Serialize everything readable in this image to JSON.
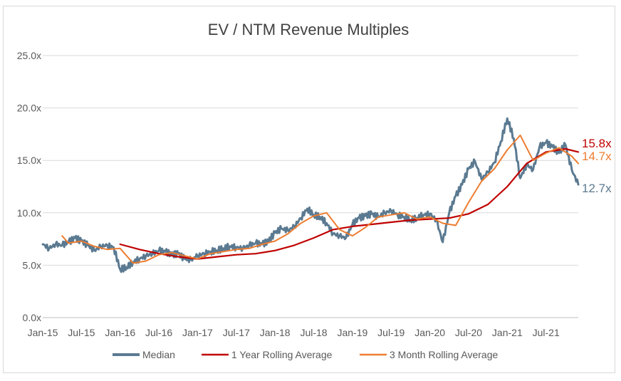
{
  "chart_data": {
    "type": "line",
    "title": "EV / NTM Revenue Multiples",
    "xlabel": "",
    "ylabel": "",
    "ylim": [
      0,
      25
    ],
    "y_ticks": [
      "0.0x",
      "5.0x",
      "10.0x",
      "15.0x",
      "20.0x",
      "25.0x"
    ],
    "y_tick_values": [
      0,
      5,
      10,
      15,
      20,
      25
    ],
    "x_ticks": [
      "Jan-15",
      "Jul-15",
      "Jan-16",
      "Jul-16",
      "Jan-17",
      "Jul-17",
      "Jan-18",
      "Jul-18",
      "Jan-19",
      "Jul-19",
      "Jan-20",
      "Jul-20",
      "Jan-21",
      "Jul-21"
    ],
    "x_range": [
      "2015-01",
      "2021-12"
    ],
    "grid": "horizontal",
    "legend_position": "bottom",
    "series": [
      {
        "name": "Median",
        "color": "#5b7a91",
        "x": [
          "2015-01",
          "2015-02",
          "2015-03",
          "2015-04",
          "2015-05",
          "2015-06",
          "2015-07",
          "2015-08",
          "2015-09",
          "2015-10",
          "2015-11",
          "2015-12",
          "2016-01",
          "2016-02",
          "2016-03",
          "2016-04",
          "2016-05",
          "2016-06",
          "2016-07",
          "2016-08",
          "2016-09",
          "2016-10",
          "2016-11",
          "2016-12",
          "2017-01",
          "2017-02",
          "2017-03",
          "2017-04",
          "2017-05",
          "2017-06",
          "2017-07",
          "2017-08",
          "2017-09",
          "2017-10",
          "2017-11",
          "2017-12",
          "2018-01",
          "2018-02",
          "2018-03",
          "2018-04",
          "2018-05",
          "2018-06",
          "2018-07",
          "2018-08",
          "2018-09",
          "2018-10",
          "2018-11",
          "2018-12",
          "2019-01",
          "2019-02",
          "2019-03",
          "2019-04",
          "2019-05",
          "2019-06",
          "2019-07",
          "2019-08",
          "2019-09",
          "2019-10",
          "2019-11",
          "2019-12",
          "2020-01",
          "2020-02",
          "2020-03",
          "2020-04",
          "2020-05",
          "2020-06",
          "2020-07",
          "2020-08",
          "2020-09",
          "2020-10",
          "2020-11",
          "2020-12",
          "2021-01",
          "2021-02",
          "2021-03",
          "2021-04",
          "2021-05",
          "2021-06",
          "2021-07",
          "2021-08",
          "2021-09",
          "2021-10",
          "2021-11",
          "2021-12"
        ],
        "values": [
          7.0,
          6.6,
          7.0,
          6.9,
          7.2,
          7.6,
          7.3,
          6.9,
          6.4,
          6.8,
          6.9,
          6.7,
          4.6,
          4.8,
          5.3,
          5.6,
          5.9,
          6.1,
          6.4,
          6.3,
          6.0,
          6.1,
          5.6,
          5.5,
          5.9,
          6.1,
          6.3,
          6.4,
          6.6,
          6.8,
          6.7,
          6.6,
          6.9,
          7.1,
          7.0,
          7.3,
          8.1,
          8.5,
          8.3,
          8.7,
          9.5,
          10.4,
          9.8,
          9.6,
          9.0,
          8.0,
          7.8,
          7.6,
          8.9,
          9.5,
          9.7,
          9.9,
          9.6,
          10.0,
          10.2,
          9.8,
          9.6,
          9.3,
          9.5,
          9.8,
          9.9,
          9.3,
          7.2,
          10.0,
          11.6,
          12.7,
          14.2,
          14.9,
          13.2,
          13.9,
          14.8,
          16.8,
          19.0,
          17.1,
          13.3,
          14.6,
          14.1,
          16.3,
          16.7,
          16.3,
          15.7,
          16.5,
          14.1,
          12.7
        ]
      },
      {
        "name": "1 Year Rolling Average",
        "color": "#c00000",
        "x": [
          "2016-01",
          "2016-04",
          "2016-07",
          "2016-10",
          "2017-01",
          "2017-04",
          "2017-07",
          "2017-10",
          "2018-01",
          "2018-04",
          "2018-07",
          "2018-10",
          "2019-01",
          "2019-04",
          "2019-07",
          "2019-10",
          "2020-01",
          "2020-04",
          "2020-07",
          "2020-10",
          "2021-01",
          "2021-04",
          "2021-07",
          "2021-10",
          "2021-12"
        ],
        "values": [
          7.0,
          6.5,
          6.1,
          5.8,
          5.6,
          5.8,
          6.0,
          6.1,
          6.4,
          6.9,
          7.6,
          8.4,
          8.7,
          8.9,
          9.1,
          9.3,
          9.4,
          9.5,
          9.9,
          10.8,
          12.5,
          14.7,
          15.8,
          16.1,
          15.8
        ]
      },
      {
        "name": "3 Month Rolling Average",
        "color": "#ed7d31",
        "x": [
          "2015-04",
          "2015-05",
          "2015-07",
          "2015-09",
          "2015-11",
          "2016-01",
          "2016-03",
          "2016-05",
          "2016-07",
          "2016-09",
          "2016-11",
          "2017-01",
          "2017-03",
          "2017-05",
          "2017-07",
          "2017-09",
          "2017-11",
          "2018-01",
          "2018-03",
          "2018-05",
          "2018-07",
          "2018-09",
          "2018-11",
          "2019-01",
          "2019-03",
          "2019-05",
          "2019-07",
          "2019-09",
          "2019-11",
          "2020-01",
          "2020-03",
          "2020-05",
          "2020-07",
          "2020-09",
          "2020-11",
          "2021-01",
          "2021-03",
          "2021-05",
          "2021-07",
          "2021-09",
          "2021-11",
          "2021-12"
        ],
        "values": [
          7.8,
          7.1,
          7.3,
          6.8,
          6.5,
          6.6,
          5.2,
          5.4,
          6.0,
          6.2,
          5.9,
          5.6,
          6.1,
          6.3,
          6.5,
          6.6,
          7.0,
          7.3,
          8.0,
          9.0,
          9.7,
          10.0,
          8.4,
          7.8,
          8.6,
          9.6,
          9.8,
          10.0,
          9.4,
          9.6,
          9.0,
          8.8,
          11.0,
          13.0,
          14.2,
          16.0,
          17.4,
          15.0,
          15.7,
          16.2,
          15.4,
          14.7
        ]
      }
    ],
    "annotations": [
      {
        "text": "15.8x",
        "color": "#c00000",
        "value": 15.8
      },
      {
        "text": "14.7x",
        "color": "#ed7d31",
        "value": 14.7
      },
      {
        "text": "12.7x",
        "color": "#5b7a91",
        "value": 12.7
      }
    ]
  }
}
